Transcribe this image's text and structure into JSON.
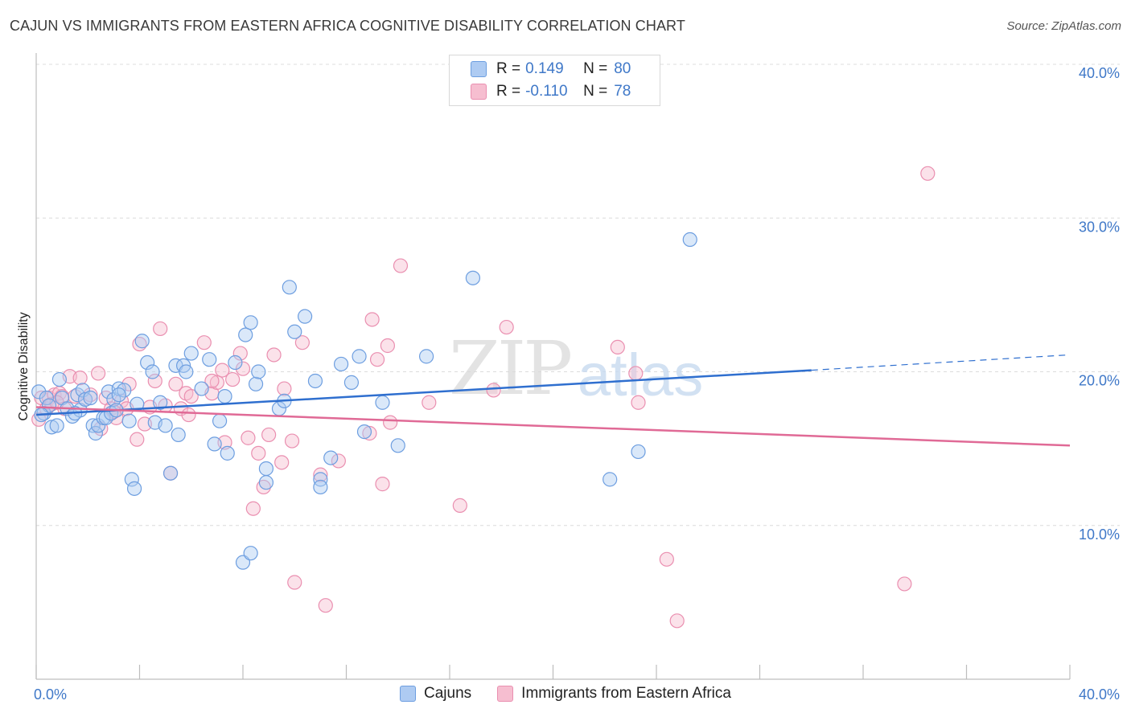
{
  "title": "CAJUN VS IMMIGRANTS FROM EASTERN AFRICA COGNITIVE DISABILITY CORRELATION CHART",
  "source": "Source: ZipAtlas.com",
  "watermark": {
    "zip": "ZIP",
    "atlas": "atlas"
  },
  "legend": {
    "rows": [
      {
        "r_label": "R =",
        "r_value": "0.149",
        "n_label": "N =",
        "n_value": "80"
      },
      {
        "r_label": "R =",
        "r_value": "-0.110",
        "n_label": "N =",
        "n_value": "78"
      }
    ]
  },
  "bottom_legend": [
    "Cajuns",
    "Immigrants from Eastern Africa"
  ],
  "colors": {
    "cajun_fill": "#aecbf2",
    "cajun_stroke": "#6d9ee0",
    "cajun_line": "#2f6fcf",
    "imm_fill": "#f6bed0",
    "imm_stroke": "#ea8fb0",
    "imm_line": "#e06a96",
    "tick_label": "#3f78c8",
    "grid": "#dcdcdc"
  },
  "chart_data": {
    "type": "scatter",
    "title": "CAJUN VS IMMIGRANTS FROM EASTERN AFRICA COGNITIVE DISABILITY CORRELATION CHART",
    "xlabel": "",
    "ylabel": "Cognitive Disability",
    "xlim": [
      0,
      40
    ],
    "ylim": [
      0,
      40
    ],
    "x_tick_labels": [
      "0.0%",
      "40.0%"
    ],
    "y_ticks": [
      10,
      20,
      30,
      40
    ],
    "y_tick_labels": [
      "10.0%",
      "20.0%",
      "30.0%",
      "40.0%"
    ],
    "grid": true,
    "legend_position": "top-center",
    "series": [
      {
        "name": "Cajuns",
        "points": [
          [
            0.1,
            18.7
          ],
          [
            0.3,
            17.3
          ],
          [
            0.4,
            18.3
          ],
          [
            0.5,
            17.8
          ],
          [
            0.6,
            16.4
          ],
          [
            0.8,
            16.5
          ],
          [
            0.9,
            19.5
          ],
          [
            1.0,
            18.3
          ],
          [
            1.2,
            17.6
          ],
          [
            1.4,
            17.1
          ],
          [
            1.6,
            18.5
          ],
          [
            1.7,
            17.5
          ],
          [
            1.8,
            18.8
          ],
          [
            1.9,
            18.2
          ],
          [
            2.1,
            18.3
          ],
          [
            2.2,
            16.5
          ],
          [
            2.3,
            16.0
          ],
          [
            2.4,
            16.5
          ],
          [
            2.6,
            17.0
          ],
          [
            2.7,
            17.0
          ],
          [
            2.8,
            18.7
          ],
          [
            2.9,
            17.3
          ],
          [
            3.0,
            18.2
          ],
          [
            3.1,
            17.5
          ],
          [
            3.2,
            18.9
          ],
          [
            3.4,
            18.8
          ],
          [
            3.6,
            16.8
          ],
          [
            3.7,
            13.0
          ],
          [
            3.8,
            12.4
          ],
          [
            3.9,
            17.9
          ],
          [
            4.1,
            22.0
          ],
          [
            4.3,
            20.6
          ],
          [
            4.5,
            20.0
          ],
          [
            4.6,
            16.7
          ],
          [
            4.8,
            18.0
          ],
          [
            5.0,
            16.5
          ],
          [
            5.2,
            13.4
          ],
          [
            5.4,
            20.4
          ],
          [
            5.5,
            15.9
          ],
          [
            5.7,
            20.4
          ],
          [
            5.8,
            20.0
          ],
          [
            6.0,
            21.2
          ],
          [
            6.4,
            18.9
          ],
          [
            6.7,
            20.8
          ],
          [
            6.9,
            15.3
          ],
          [
            7.1,
            16.8
          ],
          [
            7.3,
            18.4
          ],
          [
            7.4,
            14.7
          ],
          [
            7.7,
            20.6
          ],
          [
            8.1,
            22.4
          ],
          [
            8.3,
            23.2
          ],
          [
            8.5,
            19.2
          ],
          [
            8.6,
            20.0
          ],
          [
            8.0,
            7.6
          ],
          [
            8.3,
            8.2
          ],
          [
            8.9,
            13.7
          ],
          [
            8.9,
            12.8
          ],
          [
            9.4,
            17.6
          ],
          [
            9.6,
            18.1
          ],
          [
            9.8,
            25.5
          ],
          [
            10.0,
            22.6
          ],
          [
            10.4,
            23.6
          ],
          [
            10.8,
            19.4
          ],
          [
            11.0,
            13.0
          ],
          [
            11.0,
            12.5
          ],
          [
            11.4,
            14.4
          ],
          [
            11.8,
            20.5
          ],
          [
            12.2,
            19.3
          ],
          [
            12.5,
            21.0
          ],
          [
            12.7,
            16.1
          ],
          [
            13.4,
            18.0
          ],
          [
            14.0,
            15.2
          ],
          [
            15.1,
            21.0
          ],
          [
            16.9,
            26.1
          ],
          [
            22.2,
            13.0
          ],
          [
            23.3,
            14.8
          ],
          [
            25.3,
            28.6
          ],
          [
            0.2,
            17.2
          ],
          [
            1.5,
            17.3
          ],
          [
            3.2,
            18.5
          ]
        ]
      },
      {
        "name": "Immigrants from Eastern Africa",
        "points": [
          [
            0.1,
            16.9
          ],
          [
            0.2,
            18.3
          ],
          [
            0.4,
            17.6
          ],
          [
            0.5,
            18.3
          ],
          [
            0.6,
            17.9
          ],
          [
            0.7,
            18.5
          ],
          [
            0.9,
            18.6
          ],
          [
            1.0,
            18.4
          ],
          [
            1.1,
            17.6
          ],
          [
            1.3,
            19.7
          ],
          [
            1.5,
            18.4
          ],
          [
            1.7,
            19.6
          ],
          [
            1.9,
            18.2
          ],
          [
            2.1,
            18.5
          ],
          [
            2.4,
            19.9
          ],
          [
            2.5,
            16.3
          ],
          [
            2.7,
            18.3
          ],
          [
            2.9,
            17.6
          ],
          [
            3.1,
            17.0
          ],
          [
            3.3,
            18.1
          ],
          [
            3.5,
            17.6
          ],
          [
            3.6,
            19.2
          ],
          [
            3.9,
            15.6
          ],
          [
            4.0,
            21.8
          ],
          [
            4.2,
            16.6
          ],
          [
            4.4,
            17.7
          ],
          [
            4.6,
            19.4
          ],
          [
            4.8,
            22.8
          ],
          [
            5.0,
            17.8
          ],
          [
            5.2,
            13.4
          ],
          [
            5.4,
            19.2
          ],
          [
            5.6,
            17.6
          ],
          [
            5.8,
            18.6
          ],
          [
            5.9,
            17.2
          ],
          [
            6.0,
            18.4
          ],
          [
            6.5,
            21.9
          ],
          [
            6.8,
            18.6
          ],
          [
            7.0,
            19.3
          ],
          [
            7.2,
            20.1
          ],
          [
            7.3,
            15.4
          ],
          [
            7.6,
            19.5
          ],
          [
            7.9,
            21.2
          ],
          [
            8.0,
            20.2
          ],
          [
            8.2,
            15.7
          ],
          [
            8.4,
            11.1
          ],
          [
            8.6,
            14.7
          ],
          [
            8.8,
            12.5
          ],
          [
            9.0,
            15.9
          ],
          [
            9.2,
            21.1
          ],
          [
            9.5,
            14.1
          ],
          [
            9.6,
            18.9
          ],
          [
            9.9,
            15.5
          ],
          [
            10.0,
            6.3
          ],
          [
            10.3,
            21.9
          ],
          [
            11.0,
            13.3
          ],
          [
            11.2,
            4.8
          ],
          [
            11.7,
            14.2
          ],
          [
            12.9,
            16.0
          ],
          [
            13.0,
            23.4
          ],
          [
            13.2,
            20.8
          ],
          [
            13.4,
            12.7
          ],
          [
            13.6,
            21.7
          ],
          [
            13.7,
            16.7
          ],
          [
            14.1,
            26.9
          ],
          [
            15.2,
            18.0
          ],
          [
            16.4,
            11.3
          ],
          [
            17.7,
            18.8
          ],
          [
            18.2,
            22.9
          ],
          [
            22.5,
            21.6
          ],
          [
            23.2,
            19.9
          ],
          [
            23.3,
            18.0
          ],
          [
            24.4,
            7.8
          ],
          [
            24.8,
            3.8
          ],
          [
            33.6,
            6.2
          ],
          [
            34.5,
            32.9
          ],
          [
            3.0,
            17.4
          ],
          [
            6.8,
            19.4
          ],
          [
            0.8,
            18.0
          ]
        ]
      }
    ],
    "trend_lines": [
      {
        "name": "Cajuns",
        "from": [
          0,
          17.2
        ],
        "to": [
          30,
          20.1
        ],
        "dashed_to": [
          40,
          21.1
        ]
      },
      {
        "name": "Immigrants from Eastern Africa",
        "from": [
          0,
          17.7
        ],
        "to": [
          40,
          15.2
        ]
      }
    ]
  }
}
